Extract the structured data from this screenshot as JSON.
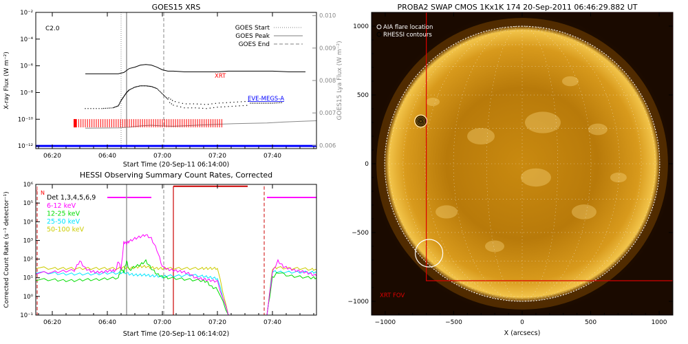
{
  "chart_data": [
    {
      "type": "line",
      "title": "GOES15 XRS",
      "xlabel": "Start Time (20-Sep-11 06:14:00)",
      "ylabel_left": "X-ray Flux (W m⁻²)",
      "ylabel_right": "GOES15 Lya Flux (W m⁻²)",
      "x_ticks": [
        "06:20",
        "06:40",
        "07:00",
        "07:20",
        "07:40"
      ],
      "x_tick_minutes": [
        6,
        26,
        46,
        66,
        86
      ],
      "xlim_minutes": [
        0,
        102
      ],
      "y_ticks_left": [
        "10⁻²",
        "10⁻⁴",
        "10⁻⁶",
        "10⁻⁸",
        "10⁻¹⁰",
        "10⁻¹²"
      ],
      "ylim_log_left": [
        -12.2,
        -2
      ],
      "y_ticks_right": [
        "0.010",
        "0.009",
        "0.008",
        "0.007",
        "0.006"
      ],
      "ylim_right": [
        0.0059,
        0.0101
      ],
      "class_label": "C2.0",
      "legend": [
        {
          "name": "GOES Start",
          "style": "dotted"
        },
        {
          "name": "GOES Peak",
          "style": "solid"
        },
        {
          "name": "GOES End",
          "style": "dashed"
        }
      ],
      "event_lines_minutes": {
        "start": 31,
        "peak": 33,
        "end": 46.5
      },
      "series": [
        {
          "name": "XRT",
          "color": "#ff0000",
          "x": [
            18,
            25,
            30,
            32,
            34,
            36,
            38,
            40,
            42,
            44,
            46,
            48,
            50,
            54,
            60,
            66,
            70,
            76,
            80,
            86,
            92,
            98
          ],
          "log_y": [
            -6.6,
            -6.6,
            -6.6,
            -6.5,
            -6.2,
            -6.1,
            -5.95,
            -5.9,
            -5.95,
            -6.1,
            -6.3,
            -6.4,
            -6.4,
            -6.45,
            -6.45,
            -6.45,
            -6.4,
            -6.4,
            -6.4,
            -6.4,
            -6.45,
            -6.45
          ]
        },
        {
          "name": "EVE-MEGS-A",
          "color": "#0000ff",
          "x": [
            18,
            30,
            34,
            38,
            42,
            46,
            50,
            56,
            60,
            66,
            72,
            78,
            84,
            90,
            96,
            102
          ],
          "lya": [
            0.00653,
            0.00654,
            0.00656,
            0.0066,
            0.00662,
            0.0066,
            0.00659,
            0.00661,
            0.00663,
            0.00665,
            0.00667,
            0.00668,
            0.00669,
            0.00672,
            0.00674,
            0.00676
          ]
        },
        {
          "name": "GOES long",
          "color": "#000000",
          "x": [
            18,
            24,
            28,
            30,
            31,
            32,
            33,
            34,
            36,
            38,
            40,
            42,
            44,
            46,
            48,
            50,
            54,
            58,
            62,
            66,
            70,
            74,
            78,
            82,
            86,
            90
          ],
          "log_y": [
            -9.2,
            -9.2,
            -9.15,
            -9.0,
            -8.6,
            -8.3,
            -8.0,
            -7.8,
            -7.6,
            -7.5,
            -7.5,
            -7.55,
            -7.7,
            -8.1,
            -8.5,
            -8.8,
            -9.0,
            -9.0,
            -9.05,
            -8.95,
            -8.9,
            -8.85,
            -8.8,
            -8.8,
            -8.8,
            -8.75
          ]
        },
        {
          "name": "HESSI attenuator",
          "color": "#ff0000",
          "x_start": 14,
          "x_end": 68,
          "log_y": -10.3
        },
        {
          "name": "EVE availability",
          "color": "#0000ff",
          "x_start": 0,
          "x_end": 102,
          "log_y": -12
        }
      ],
      "annotations": [
        {
          "text": "XRT",
          "x": 65,
          "log_y": -6.9,
          "color": "#ff0000"
        },
        {
          "text": "EVE-MEGS-A",
          "x": 77,
          "log_y": -8.6,
          "color": "#0000ff"
        }
      ]
    },
    {
      "type": "line",
      "title": "HESSI Observing Summary Count Rates, Corrected",
      "xlabel": "Start Time (20-Sep-11 06:14:02)",
      "ylabel": "Corrected Count Rate (s⁻¹ detector⁻¹)",
      "x_ticks": [
        "06:20",
        "06:40",
        "07:00",
        "07:20",
        "07:40"
      ],
      "x_tick_minutes": [
        6,
        26,
        46,
        66,
        86
      ],
      "xlim_minutes": [
        0,
        102
      ],
      "y_ticks": [
        "10⁶",
        "10⁵",
        "10⁴",
        "10³",
        "10²",
        "10¹",
        "10⁰",
        "10⁻¹"
      ],
      "ylim_log": [
        -1,
        6
      ],
      "top_labels": [
        "J",
        "N"
      ],
      "legend_title": "Det 1,3,4,5,6,9",
      "series": [
        {
          "name": "6-12 keV",
          "color": "#ff00ff",
          "x": [
            0,
            6,
            10,
            14,
            16,
            18,
            20,
            22,
            24,
            26,
            28,
            29,
            30,
            31,
            32,
            33,
            34,
            36,
            38,
            40,
            42,
            44,
            46,
            48,
            50,
            52,
            54,
            56,
            58,
            60,
            62,
            64,
            66,
            70,
            75,
            80,
            84,
            86,
            88,
            90,
            92,
            94,
            96,
            98,
            100,
            102
          ],
          "log_y": [
            1.25,
            1.3,
            1.35,
            1.4,
            1.9,
            1.5,
            1.35,
            1.3,
            1.3,
            1.35,
            1.4,
            1.35,
            1.9,
            1.45,
            2.9,
            2.85,
            2.95,
            3.1,
            3.2,
            3.3,
            3.1,
            2.5,
            1.6,
            1.45,
            1.4,
            1.35,
            1.3,
            1.2,
            1.0,
            0.95,
            0.9,
            0.85,
            0.8,
            -1,
            -1,
            -1,
            -1,
            1.3,
            1.9,
            1.6,
            1.5,
            1.4,
            1.35,
            1.3,
            1.2,
            1.1
          ]
        },
        {
          "name": "12-25 keV",
          "color": "#00dd00",
          "x": [
            0,
            6,
            10,
            14,
            18,
            22,
            26,
            30,
            31,
            32,
            33,
            34,
            36,
            38,
            40,
            42,
            44,
            46,
            48,
            52,
            56,
            60,
            62,
            64,
            66,
            70,
            75,
            80,
            84,
            86,
            88,
            92,
            96,
            100,
            102
          ],
          "log_y": [
            0.9,
            0.9,
            0.85,
            0.85,
            0.9,
            0.9,
            0.95,
            1.0,
            1.5,
            1.3,
            1.9,
            1.4,
            1.6,
            1.7,
            1.9,
            1.5,
            1.2,
            1.05,
            1.0,
            0.95,
            0.9,
            0.85,
            0.8,
            0.5,
            0.4,
            -1,
            -1,
            -1,
            -1,
            1.0,
            1.3,
            1.1,
            1.05,
            1.0,
            1.0
          ]
        },
        {
          "name": "25-50 keV",
          "color": "#00e5ff",
          "x": [
            0,
            6,
            10,
            14,
            18,
            22,
            26,
            30,
            32,
            34,
            36,
            38,
            40,
            42,
            44,
            46,
            48,
            52,
            56,
            60,
            62,
            64,
            66,
            70,
            75,
            80,
            84,
            86,
            88,
            92,
            96,
            100,
            102
          ],
          "log_y": [
            1.3,
            1.25,
            1.2,
            1.2,
            1.2,
            1.2,
            1.25,
            1.25,
            1.3,
            1.2,
            1.15,
            1.15,
            1.15,
            1.1,
            1.1,
            1.05,
            1.1,
            1.1,
            1.15,
            1.1,
            1.05,
            1.0,
            0.95,
            -1,
            -1,
            -1,
            -1,
            1.35,
            1.3,
            1.3,
            1.3,
            1.3,
            1.3
          ]
        },
        {
          "name": "50-100 keV",
          "color": "#cccc00",
          "x": [
            0,
            6,
            10,
            14,
            18,
            22,
            26,
            30,
            32,
            34,
            36,
            38,
            40,
            42,
            44,
            46,
            48,
            52,
            56,
            60,
            62,
            64,
            66,
            70,
            75,
            80,
            84,
            86,
            88,
            92,
            96,
            100,
            102
          ],
          "log_y": [
            1.55,
            1.5,
            1.5,
            1.5,
            1.5,
            1.5,
            1.5,
            1.5,
            1.55,
            1.5,
            1.55,
            1.6,
            1.6,
            1.55,
            1.5,
            1.5,
            1.5,
            1.5,
            1.5,
            1.5,
            1.5,
            1.5,
            1.5,
            -1,
            -1,
            -1,
            -1,
            1.5,
            1.55,
            1.5,
            1.5,
            1.45,
            1.45
          ]
        }
      ],
      "status_segments": [
        {
          "color": "#ff00ff",
          "x_start": 26,
          "x_end": 42,
          "log_y": 5.3
        },
        {
          "color": "#cc0000",
          "x_start": 50,
          "x_end": 77,
          "log_y": 5.9
        },
        {
          "color": "#ff00ff",
          "x_start": 84,
          "x_end": 102,
          "log_y": 5.3
        }
      ],
      "event_lines_minutes": {
        "peak": 33,
        "end": 46.5,
        "red_solid": 50,
        "red_dashed_left": 0.5,
        "red_dashed_right": 83
      }
    },
    {
      "type": "image",
      "title": "PROBA2 SWAP CMOS 1Kx1K 174 20-Sep-2011 06:46:29.882 UT",
      "xlabel": "X (arcsecs)",
      "ylabel": "Y (arcsecs)",
      "x_ticks": [
        -1000,
        -500,
        0,
        500,
        1000
      ],
      "y_ticks": [
        1000,
        500,
        0,
        -500,
        -1000
      ],
      "xlim": [
        -1100,
        1100
      ],
      "ylim": [
        -1100,
        1100
      ],
      "legend": [
        "AIA flare location",
        "RHESSI contours"
      ],
      "fov_label": "XRT FOV",
      "fov_box": {
        "x_start": -700,
        "x_end": 1100,
        "y_start": -850,
        "y_end": 1100
      },
      "flare_location": [
        -740,
        310
      ],
      "circle_marker": [
        -680,
        -650
      ],
      "solar_radius_arcsec": 1004
    }
  ]
}
